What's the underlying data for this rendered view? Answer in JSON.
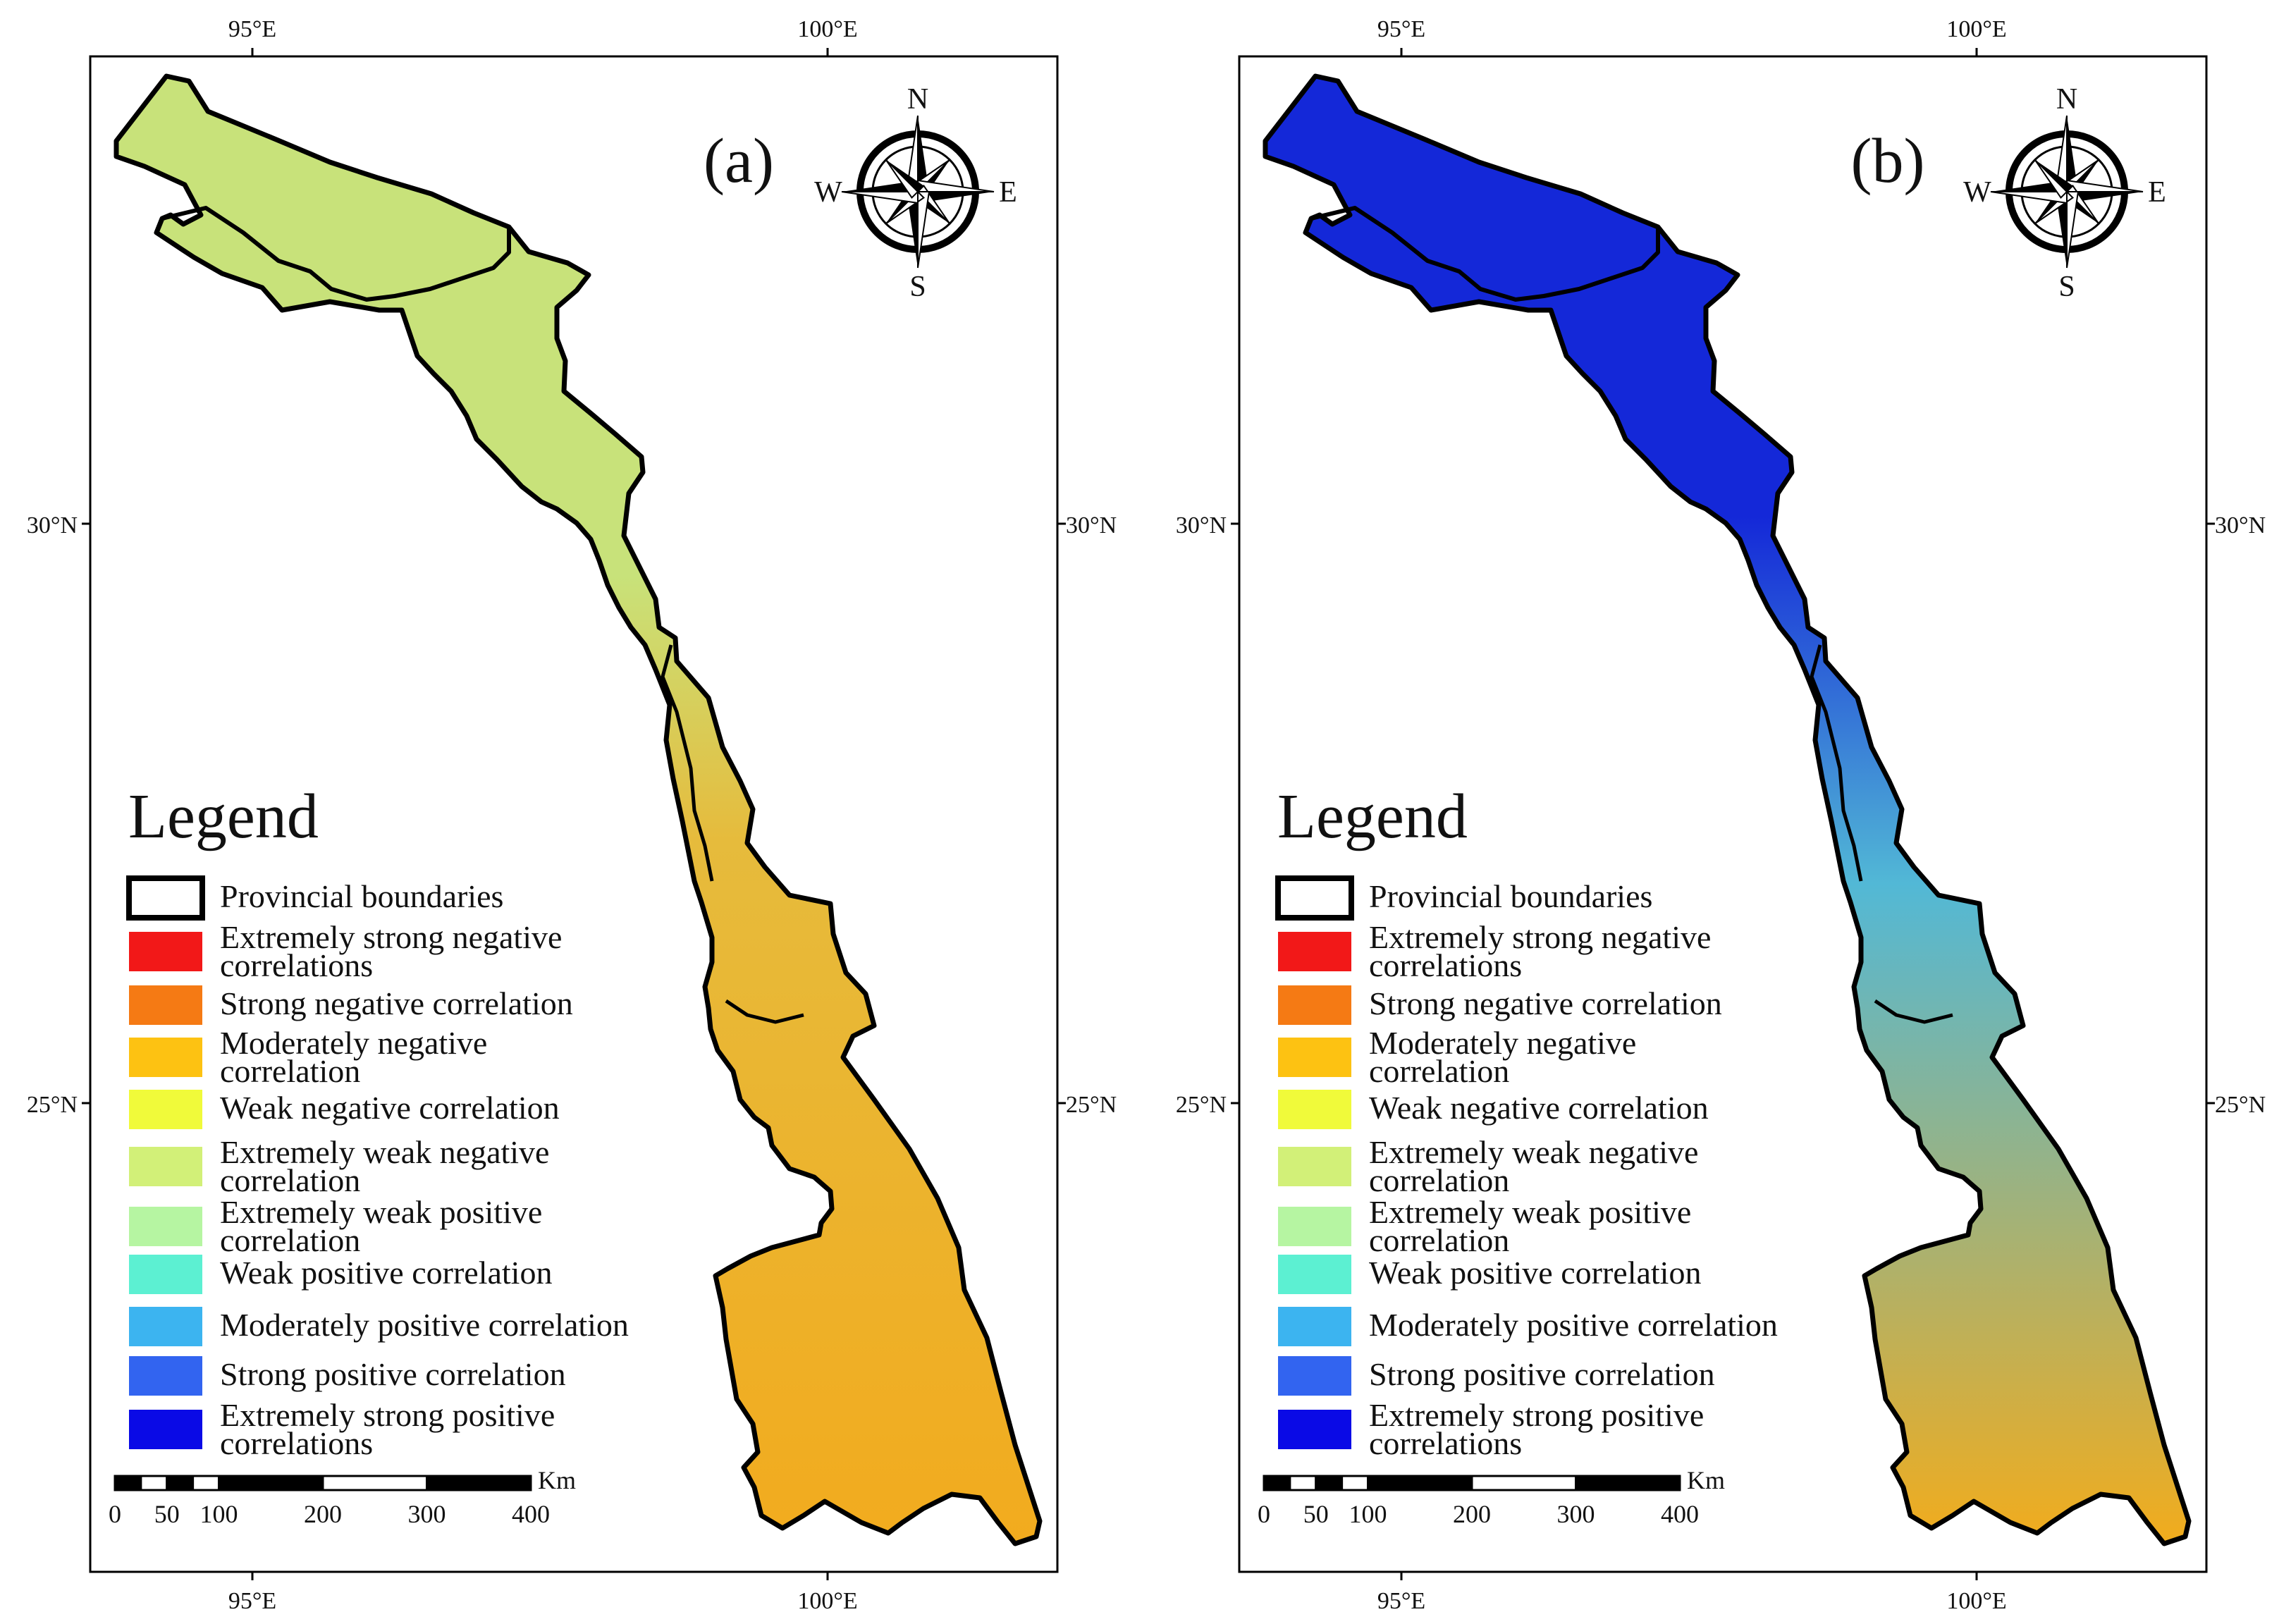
{
  "panels": [
    {
      "id": "a",
      "label": "(a)",
      "top_lon_labels": [
        "95°E",
        "100°E"
      ],
      "bottom_lon_labels": [
        "95°E",
        "100°E"
      ],
      "left_lat_labels": [
        "30°N",
        "25°N"
      ],
      "right_lat_labels": [
        "30°N",
        "25°N"
      ],
      "color_upper": "#c8e27a",
      "color_mid": "#e6bb3c",
      "color_lower": "#f2ab1e"
    },
    {
      "id": "b",
      "label": "(b)",
      "top_lon_labels": [
        "95°E",
        "100°E"
      ],
      "bottom_lon_labels": [
        "95°E",
        "100°E"
      ],
      "left_lat_labels": [
        "30°N",
        "25°N"
      ],
      "right_lat_labels": [
        "30°N",
        "25°N"
      ],
      "color_upper": "#1428d8",
      "color_mid": "#52b8d6",
      "color_lower": "#f2ac1c"
    }
  ],
  "compass": {
    "n": "N",
    "s": "S",
    "e": "E",
    "w": "W"
  },
  "legend": {
    "title": "Legend",
    "items": [
      {
        "label": [
          "Provincial boundaries"
        ],
        "color": "#ffffff",
        "outline": true
      },
      {
        "label": [
          "Extremely strong negative",
          "correlations"
        ],
        "color": "#f21818"
      },
      {
        "label": [
          "Strong negative correlation"
        ],
        "color": "#f57a14"
      },
      {
        "label": [
          "Moderately negative",
          "correlation"
        ],
        "color": "#fdc212"
      },
      {
        "label": [
          "Weak negative correlation"
        ],
        "color": "#f0fa3a"
      },
      {
        "label": [
          "Extremely weak negative",
          "correlation"
        ],
        "color": "#d2f078"
      },
      {
        "label": [
          "Extremely weak positive",
          "correlation"
        ],
        "color": "#b6f5a2"
      },
      {
        "label": [
          "Weak positive correlation"
        ],
        "color": "#5cf0d2"
      },
      {
        "label": [
          "Moderately positive correlation"
        ],
        "color": "#3cb4f0"
      },
      {
        "label": [
          "Strong positive correlation"
        ],
        "color": "#3264f0"
      },
      {
        "label": [
          "Extremely strong positive",
          "correlations"
        ],
        "color": "#0a0ae6"
      }
    ]
  },
  "scale_bar": {
    "unit": "Km",
    "ticks": [
      "0",
      "50",
      "100",
      "200",
      "300",
      "400"
    ]
  }
}
